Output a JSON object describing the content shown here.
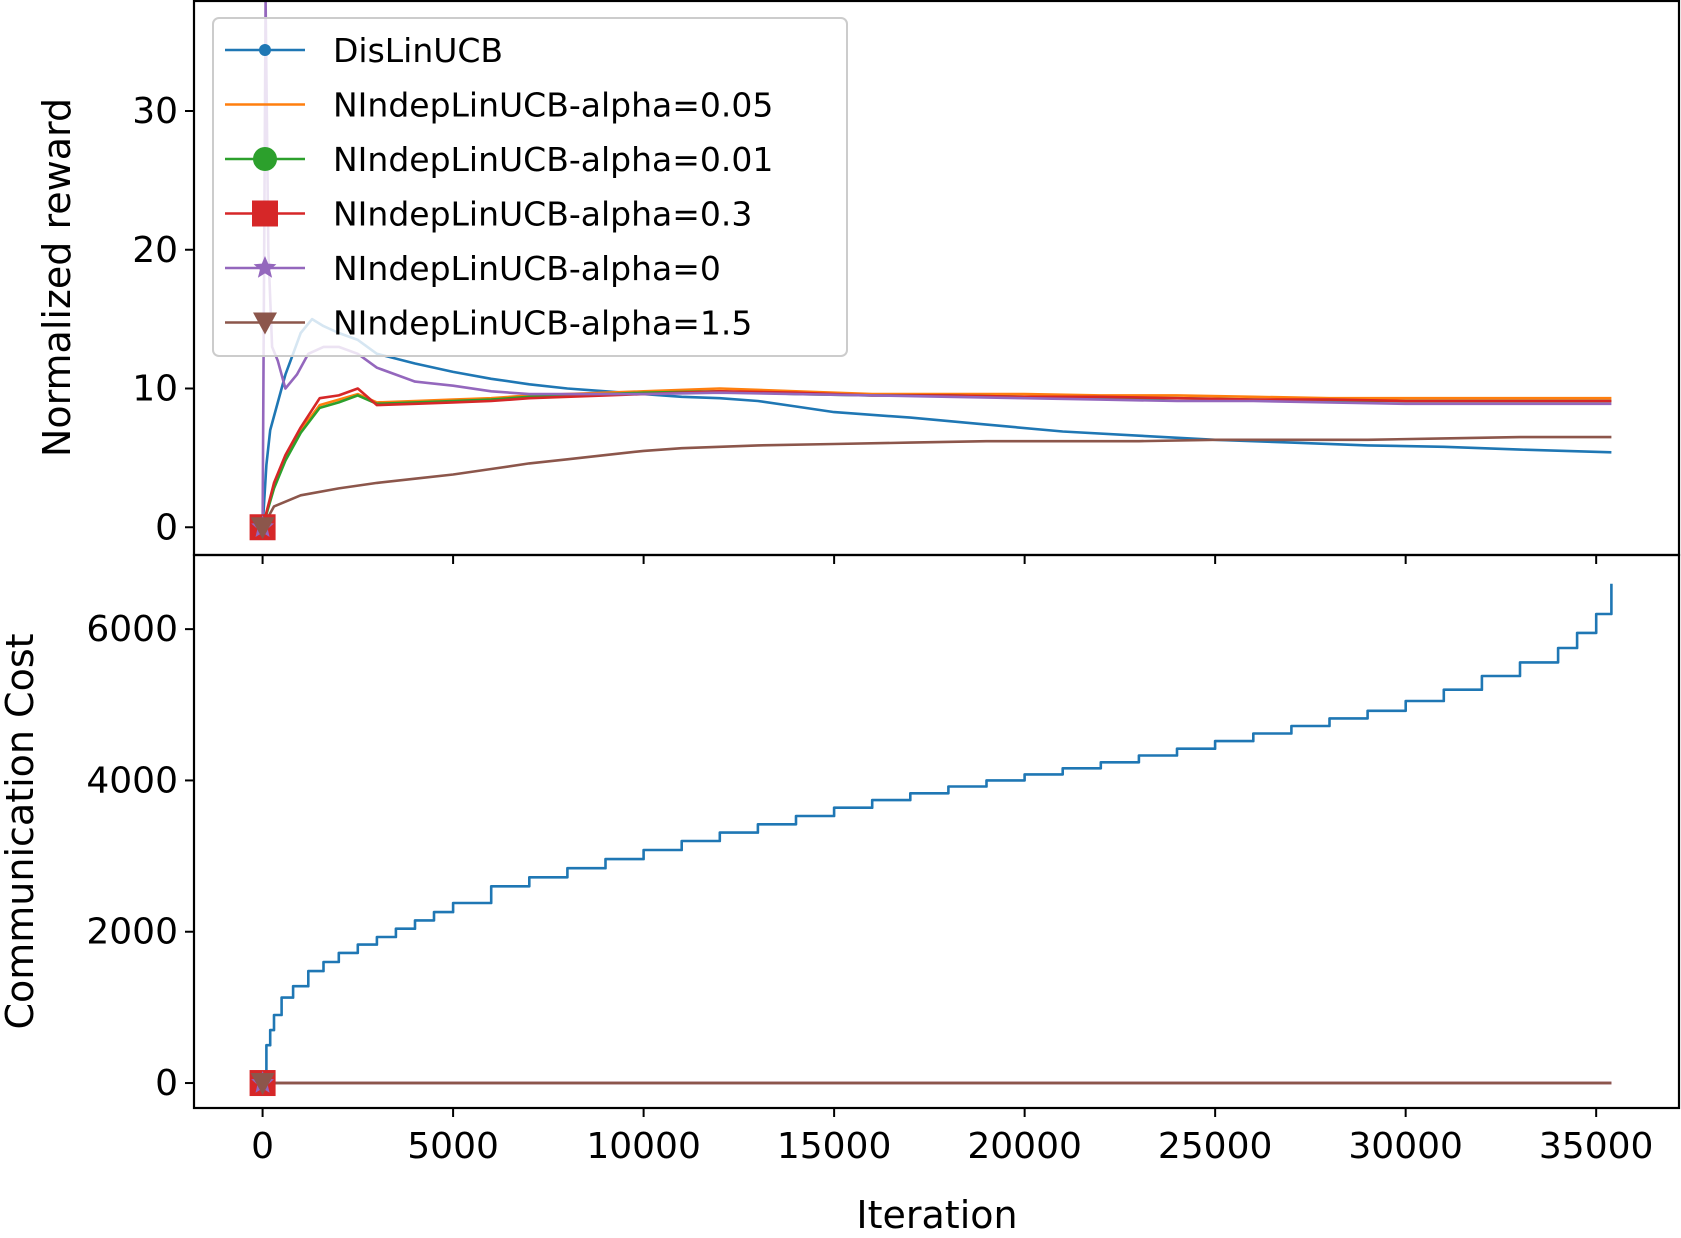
{
  "chart_data": [
    {
      "type": "line",
      "xlabel": "",
      "ylabel": "Normalized reward",
      "xlim": [
        -1800,
        37200
      ],
      "ylim": [
        -2,
        38
      ],
      "xticks": [
        0,
        5000,
        10000,
        15000,
        20000,
        25000,
        30000,
        35000
      ],
      "xtick_labels": [
        "",
        "",
        "",
        "",
        "",
        "",
        "",
        ""
      ],
      "yticks": [
        0,
        10,
        20,
        30
      ],
      "ytick_labels": [
        "0",
        "10",
        "20",
        "30"
      ],
      "grid": false,
      "legend": {
        "placement": "upper-left",
        "entries": [
          {
            "label": "DisLinUCB",
            "color": "#1f77b4",
            "marker": "circle-small"
          },
          {
            "label": "NIndepLinUCB-alpha=0.05",
            "color": "#ff7f0e",
            "marker": "none"
          },
          {
            "label": "NIndepLinUCB-alpha=0.01",
            "color": "#2ca02c",
            "marker": "circle"
          },
          {
            "label": "NIndepLinUCB-alpha=0.3",
            "color": "#d62728",
            "marker": "square"
          },
          {
            "label": "NIndepLinUCB-alpha=0",
            "color": "#9467bd",
            "marker": "star"
          },
          {
            "label": "NIndepLinUCB-alpha=1.5",
            "color": "#8c564b",
            "marker": "triangle-down"
          }
        ]
      },
      "series": [
        {
          "name": "DisLinUCB",
          "color": "#1f77b4",
          "x": [
            0,
            100,
            200,
            400,
            600,
            800,
            1000,
            1300,
            1600,
            2000,
            2500,
            3000,
            4000,
            5000,
            6000,
            7000,
            8000,
            9000,
            10000,
            11000,
            12000,
            13000,
            14000,
            15000,
            17000,
            19000,
            21000,
            23000,
            25000,
            27000,
            29000,
            31000,
            33000,
            35400
          ],
          "y": [
            0,
            4.5,
            7,
            9,
            11,
            12.5,
            14,
            15,
            14.5,
            14,
            13.5,
            12.5,
            11.8,
            11.2,
            10.7,
            10.3,
            10,
            9.8,
            9.6,
            9.4,
            9.3,
            9.1,
            8.7,
            8.3,
            7.9,
            7.4,
            6.9,
            6.6,
            6.3,
            6.1,
            5.9,
            5.8,
            5.6,
            5.4
          ]
        },
        {
          "name": "NIndepLinUCB-alpha=0.05",
          "color": "#ff7f0e",
          "x": [
            0,
            300,
            600,
            1000,
            1500,
            2000,
            2500,
            3000,
            4000,
            5000,
            6000,
            7000,
            8000,
            9000,
            10000,
            12000,
            14000,
            16000,
            18000,
            20000,
            22000,
            24000,
            26000,
            28000,
            30000,
            32000,
            35400
          ],
          "y": [
            0,
            3,
            5,
            7,
            8.8,
            9.2,
            9.6,
            9.0,
            9.1,
            9.2,
            9.3,
            9.5,
            9.6,
            9.7,
            9.8,
            10.0,
            9.8,
            9.6,
            9.6,
            9.6,
            9.5,
            9.5,
            9.4,
            9.3,
            9.3,
            9.3,
            9.3
          ]
        },
        {
          "name": "NIndepLinUCB-alpha=0.01",
          "color": "#2ca02c",
          "x": [
            0,
            300,
            600,
            1000,
            1500,
            2000,
            2500,
            3000,
            4000,
            5000,
            6000,
            7000,
            8000,
            9000,
            10000,
            12000,
            14000,
            16000,
            18000,
            20000,
            22000,
            24000,
            26000,
            28000,
            30000,
            32000,
            35400
          ],
          "y": [
            0,
            2.8,
            4.8,
            6.8,
            8.6,
            9.0,
            9.5,
            8.9,
            9.0,
            9.1,
            9.2,
            9.4,
            9.5,
            9.6,
            9.7,
            9.8,
            9.6,
            9.5,
            9.5,
            9.4,
            9.3,
            9.3,
            9.2,
            9.1,
            9.1,
            9.1,
            9.1
          ]
        },
        {
          "name": "NIndepLinUCB-alpha=0.3",
          "color": "#d62728",
          "x": [
            0,
            300,
            600,
            1000,
            1500,
            2000,
            2500,
            3000,
            4000,
            5000,
            6000,
            7000,
            8000,
            9000,
            10000,
            12000,
            14000,
            16000,
            18000,
            20000,
            22000,
            24000,
            26000,
            28000,
            30000,
            32000,
            35400
          ],
          "y": [
            0,
            3.2,
            5.2,
            7.2,
            9.3,
            9.5,
            10.0,
            8.8,
            8.9,
            9.0,
            9.1,
            9.3,
            9.4,
            9.5,
            9.6,
            9.8,
            9.7,
            9.5,
            9.5,
            9.4,
            9.4,
            9.3,
            9.2,
            9.2,
            9.1,
            9.1,
            9.1
          ]
        },
        {
          "name": "NIndepLinUCB-alpha=0",
          "color": "#9467bd",
          "x": [
            0,
            80,
            150,
            250,
            400,
            600,
            900,
            1200,
            1600,
            2000,
            2500,
            3000,
            4000,
            5000,
            6000,
            7000,
            8000,
            9000,
            10000,
            12000,
            14000,
            16000,
            18000,
            20000,
            22000,
            24000,
            26000,
            28000,
            30000,
            32000,
            35400
          ],
          "y": [
            0,
            38,
            20,
            13,
            12,
            10,
            11,
            12.5,
            13,
            13,
            12.5,
            11.5,
            10.5,
            10.2,
            9.8,
            9.6,
            9.6,
            9.6,
            9.6,
            9.7,
            9.6,
            9.5,
            9.4,
            9.3,
            9.2,
            9.1,
            9.1,
            9.0,
            8.9,
            8.9,
            8.9
          ]
        },
        {
          "name": "NIndepLinUCB-alpha=1.5",
          "color": "#8c564b",
          "x": [
            0,
            300,
            1000,
            2000,
            3000,
            4000,
            5000,
            6000,
            7000,
            8000,
            9000,
            10000,
            11000,
            12000,
            13000,
            15000,
            17000,
            19000,
            21000,
            23000,
            25000,
            27000,
            29000,
            31000,
            33000,
            35400
          ],
          "y": [
            0,
            1.5,
            2.3,
            2.8,
            3.2,
            3.5,
            3.8,
            4.2,
            4.6,
            4.9,
            5.2,
            5.5,
            5.7,
            5.8,
            5.9,
            6.0,
            6.1,
            6.2,
            6.2,
            6.2,
            6.3,
            6.3,
            6.3,
            6.4,
            6.5,
            6.5
          ]
        }
      ]
    },
    {
      "type": "line",
      "xlabel": "Iteration",
      "ylabel": "Communication Cost",
      "xlim": [
        -1800,
        37200
      ],
      "ylim": [
        -330,
        6980
      ],
      "xticks": [
        0,
        5000,
        10000,
        15000,
        20000,
        25000,
        30000,
        35000
      ],
      "xtick_labels": [
        "0",
        "5000",
        "10000",
        "15000",
        "20000",
        "25000",
        "30000",
        "35000"
      ],
      "yticks": [
        0,
        2000,
        4000,
        6000
      ],
      "ytick_labels": [
        "0",
        "2000",
        "4000",
        "6000"
      ],
      "grid": false,
      "series": [
        {
          "name": "DisLinUCB",
          "color": "#1f77b4",
          "style": "step",
          "x": [
            0,
            100,
            200,
            300,
            500,
            800,
            1200,
            1600,
            2000,
            2500,
            3000,
            3500,
            4000,
            4500,
            5000,
            6000,
            7000,
            8000,
            9000,
            10000,
            11000,
            12000,
            13000,
            14000,
            15000,
            16000,
            17000,
            18000,
            19000,
            20000,
            21000,
            22000,
            23000,
            24000,
            25000,
            26000,
            27000,
            28000,
            29000,
            30000,
            31000,
            32000,
            33000,
            34000,
            34500,
            35000,
            35400
          ],
          "y": [
            0,
            500,
            700,
            900,
            1130,
            1280,
            1480,
            1600,
            1720,
            1830,
            1930,
            2040,
            2150,
            2260,
            2380,
            2600,
            2720,
            2840,
            2960,
            3080,
            3200,
            3310,
            3420,
            3530,
            3640,
            3740,
            3830,
            3920,
            4000,
            4080,
            4160,
            4240,
            4330,
            4420,
            4520,
            4620,
            4720,
            4820,
            4920,
            5050,
            5200,
            5380,
            5560,
            5750,
            5950,
            6200,
            6600
          ]
        },
        {
          "name": "NIndepLinUCB-alpha=0.05",
          "color": "#ff7f0e",
          "x": [
            0,
            35400
          ],
          "y": [
            0,
            0
          ]
        },
        {
          "name": "NIndepLinUCB-alpha=0.01",
          "color": "#2ca02c",
          "x": [
            0,
            35400
          ],
          "y": [
            0,
            0
          ]
        },
        {
          "name": "NIndepLinUCB-alpha=0.3",
          "color": "#d62728",
          "x": [
            0,
            35400
          ],
          "y": [
            0,
            0
          ]
        },
        {
          "name": "NIndepLinUCB-alpha=0",
          "color": "#9467bd",
          "x": [
            0,
            35400
          ],
          "y": [
            0,
            0
          ]
        },
        {
          "name": "NIndepLinUCB-alpha=1.5",
          "color": "#8c564b",
          "x": [
            0,
            35400
          ],
          "y": [
            0,
            0
          ]
        }
      ]
    }
  ]
}
